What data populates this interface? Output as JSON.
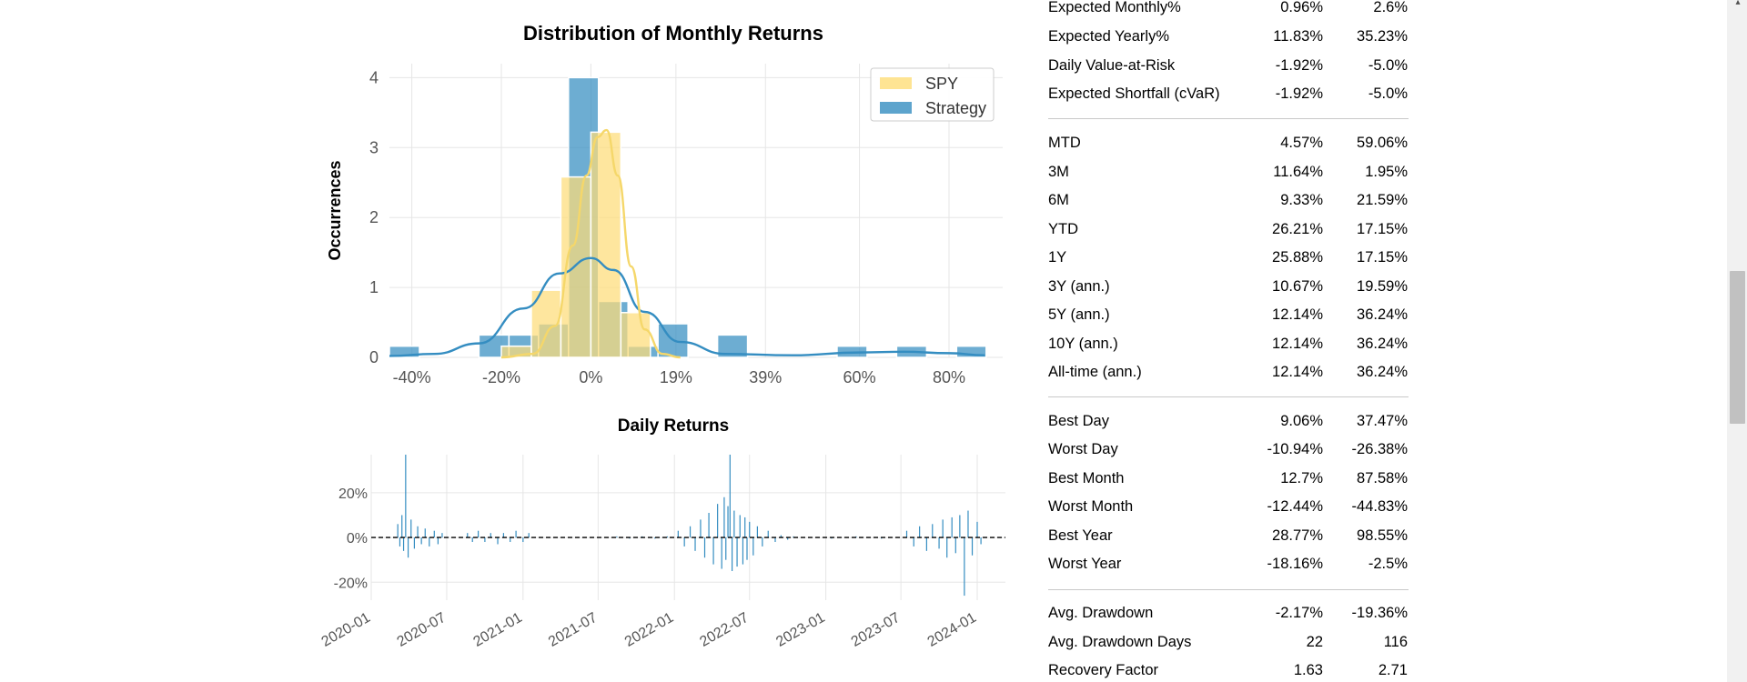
{
  "metrics": {
    "rows": [
      {
        "label": "Expected Monthly%",
        "strategy": "0.96%",
        "benchmark": "2.6%"
      },
      {
        "label": "Expected Yearly%",
        "strategy": "11.83%",
        "benchmark": "35.23%"
      },
      {
        "label": "Daily Value-at-Risk",
        "strategy": "-1.92%",
        "benchmark": "-5.0%"
      },
      {
        "label": "Expected Shortfall (cVaR)",
        "strategy": "-1.92%",
        "benchmark": "-5.0%"
      },
      {
        "label": "MTD",
        "strategy": "4.57%",
        "benchmark": "59.06%"
      },
      {
        "label": "3M",
        "strategy": "11.64%",
        "benchmark": "1.95%"
      },
      {
        "label": "6M",
        "strategy": "9.33%",
        "benchmark": "21.59%"
      },
      {
        "label": "YTD",
        "strategy": "26.21%",
        "benchmark": "17.15%"
      },
      {
        "label": "1Y",
        "strategy": "25.88%",
        "benchmark": "17.15%"
      },
      {
        "label": "3Y (ann.)",
        "strategy": "10.67%",
        "benchmark": "19.59%"
      },
      {
        "label": "5Y (ann.)",
        "strategy": "12.14%",
        "benchmark": "36.24%"
      },
      {
        "label": "10Y (ann.)",
        "strategy": "12.14%",
        "benchmark": "36.24%"
      },
      {
        "label": "All-time (ann.)",
        "strategy": "12.14%",
        "benchmark": "36.24%"
      },
      {
        "label": "Best Day",
        "strategy": "9.06%",
        "benchmark": "37.47%"
      },
      {
        "label": "Worst Day",
        "strategy": "-10.94%",
        "benchmark": "-26.38%"
      },
      {
        "label": "Best Month",
        "strategy": "12.7%",
        "benchmark": "87.58%"
      },
      {
        "label": "Worst Month",
        "strategy": "-12.44%",
        "benchmark": "-44.83%"
      },
      {
        "label": "Best Year",
        "strategy": "28.77%",
        "benchmark": "98.55%"
      },
      {
        "label": "Worst Year",
        "strategy": "-18.16%",
        "benchmark": "-2.5%"
      },
      {
        "label": "Avg. Drawdown",
        "strategy": "-2.17%",
        "benchmark": "-19.36%"
      },
      {
        "label": "Avg. Drawdown Days",
        "strategy": "22",
        "benchmark": "116"
      },
      {
        "label": "Recovery Factor",
        "strategy": "1.63",
        "benchmark": "2.71"
      }
    ]
  },
  "colors": {
    "strategy": "#348dc1",
    "benchmark": "#fedd78",
    "grid": "#e6e6e6",
    "tick_text": "#555555"
  },
  "chart_data": [
    {
      "type": "bar",
      "title": "Distribution of Monthly Returns",
      "xlabel": "",
      "ylabel": "Occurrences",
      "x_tick_labels": [
        "-40%",
        "-20%",
        "0%",
        "19%",
        "39%",
        "60%",
        "80%"
      ],
      "x_tick_values": [
        -40,
        -20,
        0,
        19,
        39,
        60,
        80
      ],
      "y_ticks": [
        0,
        1,
        2,
        3,
        4
      ],
      "xlim": [
        -45,
        92
      ],
      "ylim": [
        0,
        4.2
      ],
      "grid": true,
      "legend": {
        "placement": "top-right",
        "entries": [
          "SPY",
          "Strategy"
        ]
      },
      "series": [
        {
          "name": "SPY",
          "bins": [
            {
              "x0": -20,
              "x1": -13.3,
              "value": 0.16
            },
            {
              "x0": -13.3,
              "x1": -6.7,
              "value": 0.96
            },
            {
              "x0": -6.7,
              "x1": 0,
              "value": 2.58
            },
            {
              "x0": 0,
              "x1": 6.7,
              "value": 3.22
            },
            {
              "x0": 6.7,
              "x1": 13.3,
              "value": 0.64
            }
          ],
          "kde": [
            [
              -20,
              0
            ],
            [
              -13,
              0.05
            ],
            [
              -8,
              0.45
            ],
            [
              -4,
              1.6
            ],
            [
              -1,
              2.6
            ],
            [
              1.5,
              3.15
            ],
            [
              3.5,
              3.25
            ],
            [
              6,
              2.6
            ],
            [
              9,
              1.3
            ],
            [
              12,
              0.4
            ],
            [
              16,
              0.05
            ],
            [
              20,
              0
            ]
          ]
        },
        {
          "name": "Strategy",
          "bins": [
            {
              "x0": -45,
              "x1": -38.3,
              "value": 0.16
            },
            {
              "x0": -25,
              "x1": -18.3,
              "value": 0.32
            },
            {
              "x0": -18.3,
              "x1": -11.7,
              "value": 0.32
            },
            {
              "x0": -11.7,
              "x1": -5,
              "value": 0.48
            },
            {
              "x0": -5,
              "x1": 1.7,
              "value": 4.0
            },
            {
              "x0": 1.7,
              "x1": 8.3,
              "value": 0.8
            },
            {
              "x0": 8.3,
              "x1": 15,
              "value": 0.16
            },
            {
              "x0": 15,
              "x1": 21.7,
              "value": 0.48
            },
            {
              "x0": 28.3,
              "x1": 35,
              "value": 0.32
            },
            {
              "x0": 55,
              "x1": 61.7,
              "value": 0.16
            },
            {
              "x0": 68.3,
              "x1": 75,
              "value": 0.16
            },
            {
              "x0": 81.7,
              "x1": 88.3,
              "value": 0.16
            }
          ],
          "kde": [
            [
              -45,
              0.02
            ],
            [
              -35,
              0.05
            ],
            [
              -25,
              0.2
            ],
            [
              -15,
              0.7
            ],
            [
              -7,
              1.2
            ],
            [
              0,
              1.42
            ],
            [
              5,
              1.25
            ],
            [
              12,
              0.65
            ],
            [
              20,
              0.22
            ],
            [
              30,
              0.05
            ],
            [
              45,
              0.03
            ],
            [
              60,
              0.07
            ],
            [
              70,
              0.08
            ],
            [
              80,
              0.06
            ],
            [
              88,
              0.03
            ]
          ]
        }
      ]
    },
    {
      "type": "bar",
      "title": "Daily Returns",
      "xlabel": "",
      "ylabel": "",
      "x_tick_labels": [
        "2020-01",
        "2020-07",
        "2021-01",
        "2021-07",
        "2022-01",
        "2022-07",
        "2023-01",
        "2023-07",
        "2024-01"
      ],
      "y_tick_labels": [
        "20%",
        "0%",
        "-20%"
      ],
      "y_ticks": [
        20,
        0,
        -20
      ],
      "ylim": [
        -28,
        37
      ],
      "grid": true,
      "reference_line": {
        "y": 0,
        "style": "dashed"
      },
      "series": [
        {
          "name": "",
          "x": [
            "2020-03-05",
            "2020-03-10",
            "2020-03-15",
            "2020-03-19",
            "2020-03-24",
            "2020-03-30",
            "2020-04-06",
            "2020-04-14",
            "2020-04-22",
            "2020-05-01",
            "2020-05-10",
            "2020-05-20",
            "2020-06-01",
            "2020-06-10",
            "2020-06-20",
            "2020-08-20",
            "2020-09-01",
            "2020-09-15",
            "2020-10-01",
            "2020-10-15",
            "2020-11-01",
            "2020-11-15",
            "2020-12-01",
            "2020-12-15",
            "2021-01-01",
            "2021-01-15",
            "2021-08-15",
            "2021-09-15",
            "2021-10-15",
            "2021-11-15",
            "2021-12-15",
            "2022-01-10",
            "2022-01-25",
            "2022-02-08",
            "2022-02-20",
            "2022-03-05",
            "2022-03-15",
            "2022-03-25",
            "2022-04-05",
            "2022-04-15",
            "2022-04-25",
            "2022-05-01",
            "2022-05-05",
            "2022-05-10",
            "2022-05-15",
            "2022-05-20",
            "2022-05-25",
            "2022-06-01",
            "2022-06-08",
            "2022-06-15",
            "2022-06-20",
            "2022-06-25",
            "2022-07-01",
            "2022-07-10",
            "2022-07-20",
            "2022-08-01",
            "2022-08-15",
            "2022-09-01",
            "2022-09-15",
            "2022-10-01",
            "2022-10-15",
            "2023-01-15",
            "2023-03-15",
            "2023-05-15",
            "2023-07-15",
            "2023-08-01",
            "2023-08-15",
            "2023-09-01",
            "2023-09-15",
            "2023-10-01",
            "2023-10-10",
            "2023-10-20",
            "2023-11-01",
            "2023-11-10",
            "2023-11-20",
            "2023-12-01",
            "2023-12-10",
            "2023-12-20",
            "2024-01-01",
            "2024-01-10"
          ],
          "values": [
            6,
            -4,
            10,
            -6,
            37,
            -9,
            8,
            -5,
            5,
            -3,
            4,
            -4,
            3,
            -3,
            2,
            2,
            -2,
            3,
            -2,
            2,
            -3,
            2,
            -2,
            3,
            -2,
            2,
            0.5,
            -0.5,
            0.5,
            -0.5,
            0.5,
            3,
            -4,
            5,
            -6,
            8,
            -9,
            11,
            -12,
            15,
            -14,
            18,
            -10,
            14,
            37,
            -15,
            12,
            -13,
            10,
            -12,
            9,
            -10,
            7,
            -8,
            5,
            -4,
            3,
            -2,
            1,
            -1,
            0.5,
            -0.5,
            0.5,
            -0.5,
            3,
            -4,
            5,
            -6,
            6,
            -5,
            8,
            -9,
            9,
            -7,
            10,
            -26,
            12,
            -8,
            7,
            -3
          ]
        }
      ]
    }
  ]
}
